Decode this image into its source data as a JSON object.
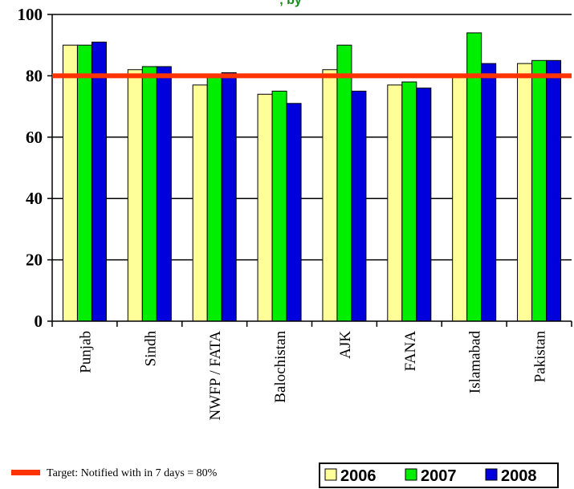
{
  "chart_data": {
    "type": "bar",
    "title_fragment": ", by",
    "categories": [
      "Punjab",
      "Sindh",
      "NWFP / FATA",
      "Balochistan",
      "AJK",
      "FANA",
      "Islamabad",
      "Pakistan"
    ],
    "series": [
      {
        "name": "2006",
        "color": "#ffff99",
        "values": [
          90,
          82,
          77,
          74,
          82,
          77,
          80,
          84
        ]
      },
      {
        "name": "2007",
        "color": "#00ee00",
        "values": [
          90,
          83,
          80,
          75,
          90,
          78,
          94,
          85
        ]
      },
      {
        "name": "2008",
        "color": "#0000dd",
        "values": [
          91,
          83,
          81,
          71,
          75,
          76,
          84,
          85
        ]
      }
    ],
    "ylim": [
      0,
      100
    ],
    "yticks": [
      0,
      20,
      40,
      60,
      80,
      100
    ],
    "target": {
      "value": 80,
      "label": "Target: Notified with in 7 days = 80%",
      "color": "#ff3300"
    },
    "grid": true,
    "legend_position": "bottom-right"
  }
}
